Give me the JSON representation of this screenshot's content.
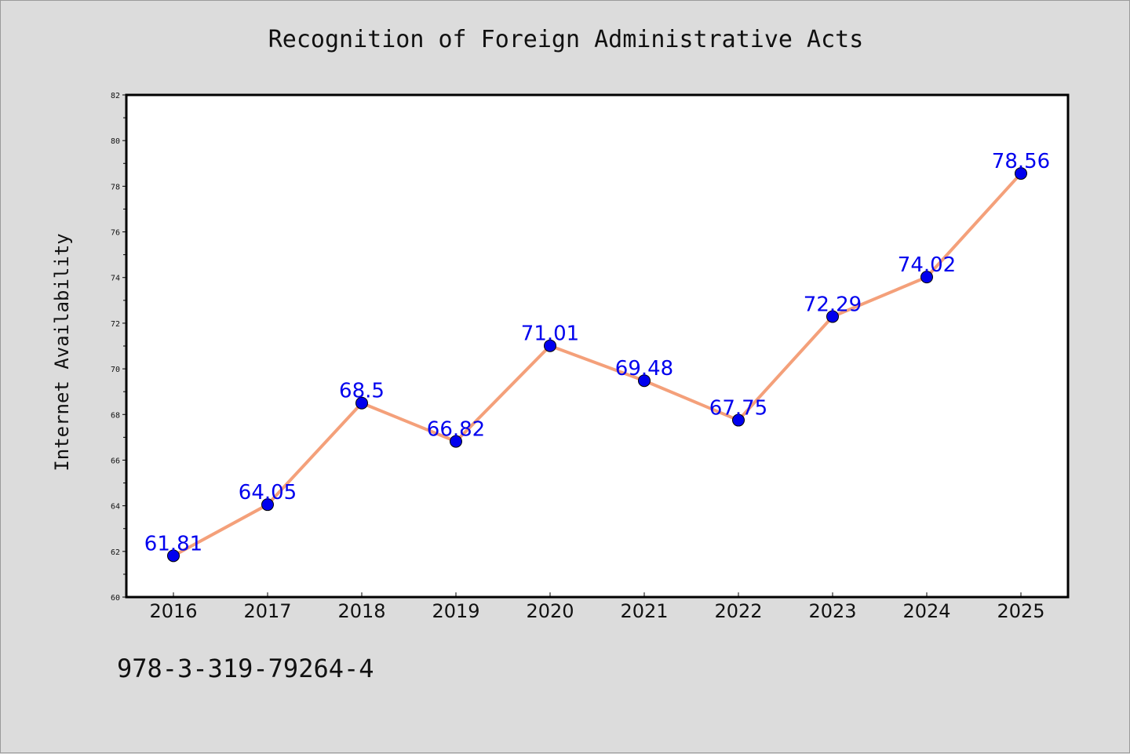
{
  "caption": "978-3-319-79264-4",
  "colors": {
    "line": "#f4a07a",
    "marker": "#0000ee",
    "label": "#0000ee",
    "background": "#dcdcdc",
    "plot_area": "#ffffff"
  },
  "chart_data": {
    "type": "line",
    "title": "Recognition of Foreign Administrative Acts",
    "xlabel": "",
    "ylabel": "Internet Availability",
    "categories": [
      "2016",
      "2017",
      "2018",
      "2019",
      "2020",
      "2021",
      "2022",
      "2023",
      "2024",
      "2025"
    ],
    "series": [
      {
        "values": [
          61.81,
          64.05,
          68.5,
          66.82,
          71.01,
          69.48,
          67.75,
          72.29,
          74.02,
          78.56
        ],
        "labels": [
          "61.81",
          "64.05",
          "68.5",
          "66.82",
          "71.01",
          "69.48",
          "67.75",
          "72.29",
          "74.02",
          "78.56"
        ]
      }
    ],
    "ylim": [
      60,
      82
    ],
    "yticks": [
      60,
      62,
      64,
      66,
      68,
      70,
      72,
      74,
      76,
      78,
      80,
      82
    ],
    "grid": false,
    "legend": "none"
  }
}
